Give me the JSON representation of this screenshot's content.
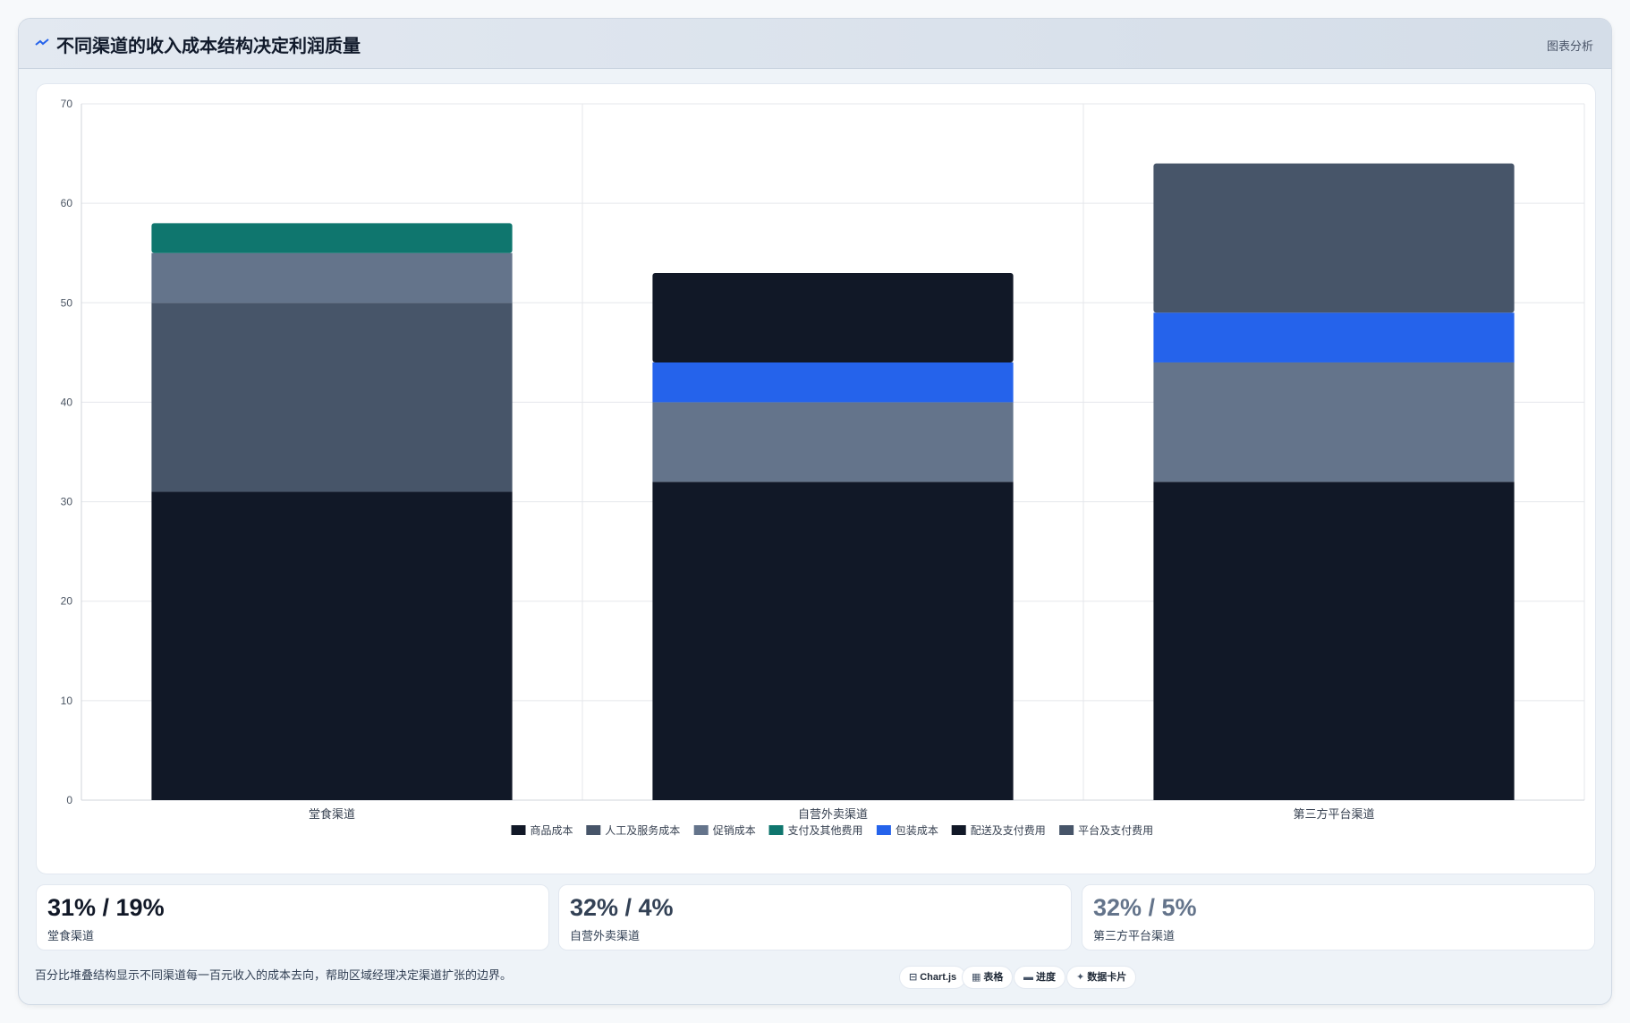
{
  "header": {
    "title": "不同渠道的收入成本结构决定利润质量",
    "action_label": "图表分析",
    "icon": "trend-line-icon"
  },
  "chart_data": {
    "type": "bar",
    "stacked": true,
    "categories": [
      "堂食渠道",
      "自营外卖渠道",
      "第三方平台渠道"
    ],
    "ylim": [
      0,
      70
    ],
    "yticks": [
      0,
      10,
      20,
      30,
      40,
      50,
      60,
      70
    ],
    "grid": true,
    "legend_position": "bottom",
    "series": [
      {
        "name": "商品成本",
        "color": "#111827",
        "values": [
          31,
          32,
          32
        ]
      },
      {
        "name": "人工及服务成本",
        "color": "#475569",
        "values": [
          19,
          0,
          0
        ]
      },
      {
        "name": "促销成本",
        "color": "#64748b",
        "values": [
          5,
          8,
          12
        ]
      },
      {
        "name": "支付及其他费用",
        "color": "#0f766e",
        "values": [
          3,
          0,
          0
        ]
      },
      {
        "name": "包装成本",
        "color": "#2563eb",
        "values": [
          0,
          4,
          5
        ]
      },
      {
        "name": "配送及支付费用",
        "color": "#111827",
        "values": [
          0,
          9,
          0
        ]
      },
      {
        "name": "平台及支付费用",
        "color": "#475569",
        "values": [
          0,
          0,
          15
        ]
      }
    ]
  },
  "stats": [
    {
      "value": "31% / 19%",
      "label": "堂食渠道",
      "color": "#111827"
    },
    {
      "value": "32% / 4%",
      "label": "自营外卖渠道",
      "color": "#334155"
    },
    {
      "value": "32% / 5%",
      "label": "第三方平台渠道",
      "color": "#64748b"
    }
  ],
  "footnote": "百分比堆叠结构显示不同渠道每一百元收入的成本去向，帮助区域经理决定渠道扩张的边界。",
  "tags": [
    {
      "icon": "⊟",
      "icon_name": "chart-icon",
      "label": "Chart.js"
    },
    {
      "icon": "▦",
      "icon_name": "table-icon",
      "label": "表格"
    },
    {
      "icon": "▬",
      "icon_name": "progress-icon",
      "label": "进度"
    },
    {
      "icon": "✦",
      "icon_name": "sparkle-icon",
      "label": "数据卡片"
    }
  ]
}
